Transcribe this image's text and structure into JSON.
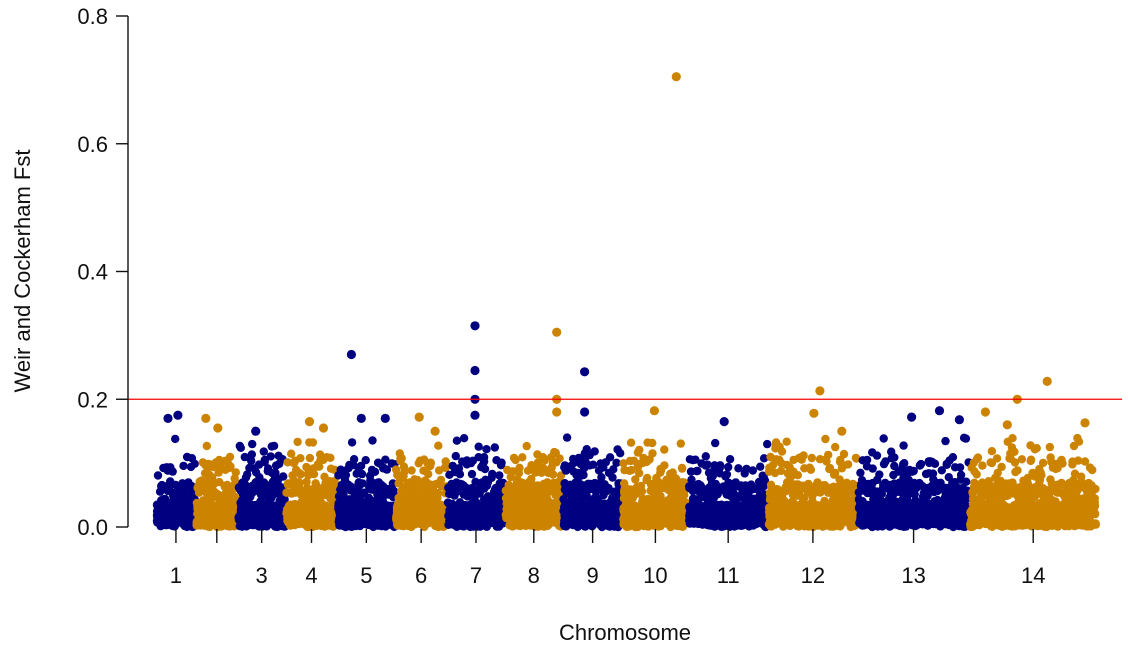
{
  "chart_data": {
    "type": "scatter",
    "subtype": "manhattan",
    "title": "",
    "xlabel": "Chromosome",
    "ylabel": "Weir and Cockerham Fst",
    "ylim": [
      0,
      0.8
    ],
    "yticks": [
      0.0,
      0.2,
      0.4,
      0.6,
      0.8
    ],
    "ytick_labels": [
      "0.0",
      "0.2",
      "0.4",
      "0.6",
      "0.8"
    ],
    "threshold": 0.2,
    "threshold_color": "#ff0000",
    "grid": false,
    "legend": "none",
    "colors": {
      "odd": "#000080",
      "even": "#cc8400"
    },
    "segments": [
      {
        "id": "1",
        "label": "1",
        "start": 0.0,
        "end": 1.0,
        "color": "navy"
      },
      {
        "id": "2",
        "label": "",
        "start": 1.0,
        "end": 2.05,
        "color": "gold"
      },
      {
        "id": "3",
        "label": "3",
        "start": 2.05,
        "end": 3.25,
        "color": "navy"
      },
      {
        "id": "4",
        "label": "4",
        "start": 3.25,
        "end": 4.55,
        "color": "gold"
      },
      {
        "id": "5",
        "label": "5",
        "start": 4.55,
        "end": 6.0,
        "color": "navy"
      },
      {
        "id": "6",
        "label": "6",
        "start": 6.0,
        "end": 7.3,
        "color": "gold"
      },
      {
        "id": "7",
        "label": "7",
        "start": 7.3,
        "end": 8.75,
        "color": "navy"
      },
      {
        "id": "8",
        "label": "8",
        "start": 8.75,
        "end": 10.2,
        "color": "gold"
      },
      {
        "id": "9",
        "label": "9",
        "start": 10.2,
        "end": 11.7,
        "color": "navy"
      },
      {
        "id": "10",
        "label": "10",
        "start": 11.7,
        "end": 13.35,
        "color": "gold"
      },
      {
        "id": "11",
        "label": "11",
        "start": 13.35,
        "end": 15.35,
        "color": "navy"
      },
      {
        "id": "12",
        "label": "12",
        "start": 15.35,
        "end": 17.6,
        "color": "gold"
      },
      {
        "id": "13",
        "label": "13",
        "start": 17.6,
        "end": 20.4,
        "color": "navy"
      },
      {
        "id": "14",
        "label": "14",
        "start": 20.4,
        "end": 23.6,
        "color": "gold"
      }
    ],
    "tick_labels": [
      "1",
      "3",
      "4",
      "5",
      "6",
      "7",
      "8",
      "9",
      "10",
      "11",
      "12",
      "13",
      "14"
    ],
    "highlighted_points": [
      {
        "chromosome": "1",
        "x": 0.3,
        "y": 0.17
      },
      {
        "chromosome": "1",
        "x": 0.55,
        "y": 0.175
      },
      {
        "chromosome": "2",
        "x": 1.25,
        "y": 0.17
      },
      {
        "chromosome": "2",
        "x": 1.55,
        "y": 0.155
      },
      {
        "chromosome": "3",
        "x": 2.5,
        "y": 0.15
      },
      {
        "chromosome": "4",
        "x": 3.85,
        "y": 0.165
      },
      {
        "chromosome": "4",
        "x": 4.2,
        "y": 0.155
      },
      {
        "chromosome": "5",
        "x": 4.9,
        "y": 0.27
      },
      {
        "chromosome": "5",
        "x": 5.15,
        "y": 0.17
      },
      {
        "chromosome": "5",
        "x": 5.75,
        "y": 0.17
      },
      {
        "chromosome": "6",
        "x": 6.6,
        "y": 0.172
      },
      {
        "chromosome": "6",
        "x": 7.0,
        "y": 0.15
      },
      {
        "chromosome": "7",
        "x": 8.0,
        "y": 0.315
      },
      {
        "chromosome": "7",
        "x": 8.0,
        "y": 0.245
      },
      {
        "chromosome": "7",
        "x": 8.0,
        "y": 0.2
      },
      {
        "chromosome": "7",
        "x": 8.0,
        "y": 0.175
      },
      {
        "chromosome": "8",
        "x": 10.05,
        "y": 0.305
      },
      {
        "chromosome": "8",
        "x": 10.05,
        "y": 0.2
      },
      {
        "chromosome": "8",
        "x": 10.05,
        "y": 0.18
      },
      {
        "chromosome": "9",
        "x": 10.75,
        "y": 0.243
      },
      {
        "chromosome": "9",
        "x": 10.75,
        "y": 0.18
      },
      {
        "chromosome": "10",
        "x": 12.5,
        "y": 0.182
      },
      {
        "chromosome": "10",
        "x": 13.05,
        "y": 0.705
      },
      {
        "chromosome": "11",
        "x": 14.25,
        "y": 0.165
      },
      {
        "chromosome": "12",
        "x": 16.5,
        "y": 0.178
      },
      {
        "chromosome": "12",
        "x": 16.65,
        "y": 0.213
      },
      {
        "chromosome": "12",
        "x": 17.2,
        "y": 0.15
      },
      {
        "chromosome": "13",
        "x": 18.95,
        "y": 0.172
      },
      {
        "chromosome": "13",
        "x": 19.65,
        "y": 0.182
      },
      {
        "chromosome": "13",
        "x": 20.15,
        "y": 0.168
      },
      {
        "chromosome": "14",
        "x": 20.8,
        "y": 0.18
      },
      {
        "chromosome": "14",
        "x": 21.6,
        "y": 0.2
      },
      {
        "chromosome": "14",
        "x": 21.35,
        "y": 0.16
      },
      {
        "chromosome": "14",
        "x": 22.35,
        "y": 0.228
      },
      {
        "chromosome": "14",
        "x": 23.3,
        "y": 0.163
      }
    ]
  }
}
